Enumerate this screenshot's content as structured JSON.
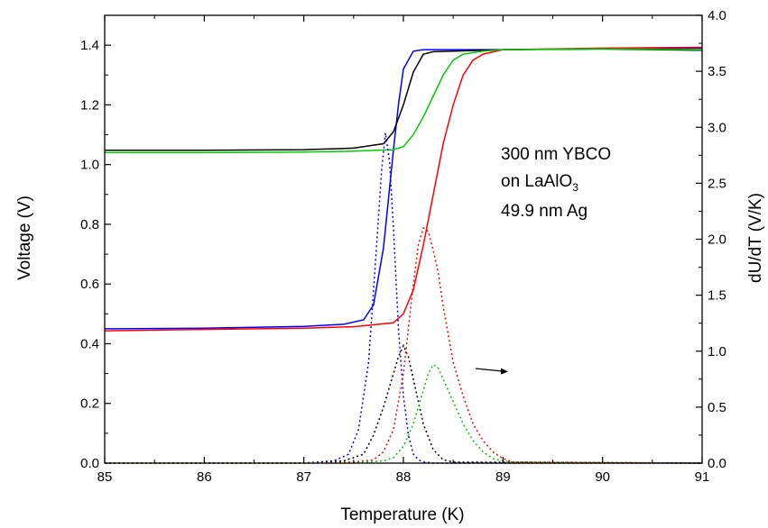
{
  "chart_data": {
    "type": "line",
    "xlabel": "Temperature (K)",
    "ylabel": "Voltage (V)",
    "y2label": "dU/dT (V/K)",
    "xlim": [
      85,
      91
    ],
    "ylim": [
      0,
      1.5
    ],
    "y2lim": [
      0,
      4.0
    ],
    "x_ticks": [
      "85",
      "86",
      "87",
      "88",
      "89",
      "90",
      "91"
    ],
    "y_ticks": [
      "0.0",
      "0.2",
      "0.4",
      "0.6",
      "0.8",
      "1.0",
      "1.2",
      "1.4"
    ],
    "y2_ticks": [
      "0.0",
      "0.5",
      "1.0",
      "1.5",
      "2.0",
      "2.5",
      "3.0",
      "3.5",
      "4.0"
    ],
    "annotation": {
      "line1": "300 nm YBCO",
      "line2_prefix": "on LaAlO",
      "line2_sub": "3",
      "line3": "49.9 nm Ag"
    },
    "colors": {
      "blue": "#0000ff",
      "black": "#000000",
      "red": "#ff0000",
      "green": "#00cc00"
    },
    "series": [
      {
        "color": "blue",
        "axis": "left",
        "style": "solid",
        "x": [
          85,
          86,
          87,
          87.4,
          87.6,
          87.7,
          87.8,
          87.9,
          87.95,
          88.0,
          88.1,
          88.2,
          88.4,
          89,
          90,
          91
        ],
        "y": [
          0.45,
          0.452,
          0.458,
          0.465,
          0.48,
          0.53,
          0.72,
          1.05,
          1.2,
          1.32,
          1.38,
          1.385,
          1.385,
          1.385,
          1.388,
          1.39
        ]
      },
      {
        "color": "black",
        "axis": "left",
        "style": "solid",
        "x": [
          85,
          86,
          87,
          87.5,
          87.8,
          87.9,
          88.0,
          88.1,
          88.2,
          88.3,
          88.5,
          89,
          90,
          91
        ],
        "y": [
          1.048,
          1.048,
          1.05,
          1.055,
          1.07,
          1.11,
          1.2,
          1.31,
          1.37,
          1.378,
          1.38,
          1.385,
          1.387,
          1.383
        ]
      },
      {
        "color": "red",
        "axis": "left",
        "style": "solid",
        "x": [
          85,
          86,
          87,
          87.5,
          87.9,
          88.0,
          88.1,
          88.2,
          88.3,
          88.4,
          88.5,
          88.6,
          88.7,
          88.8,
          89,
          90,
          91
        ],
        "y": [
          0.443,
          0.448,
          0.452,
          0.457,
          0.47,
          0.5,
          0.58,
          0.73,
          0.9,
          1.07,
          1.2,
          1.3,
          1.35,
          1.37,
          1.385,
          1.39,
          1.393
        ]
      },
      {
        "color": "green",
        "axis": "left",
        "style": "solid",
        "x": [
          85,
          86,
          87,
          87.5,
          87.9,
          88.0,
          88.1,
          88.2,
          88.3,
          88.4,
          88.5,
          88.6,
          88.8,
          89,
          90,
          91
        ],
        "y": [
          1.04,
          1.04,
          1.042,
          1.045,
          1.05,
          1.06,
          1.1,
          1.16,
          1.23,
          1.3,
          1.35,
          1.37,
          1.38,
          1.385,
          1.388,
          1.385
        ]
      },
      {
        "color": "blue",
        "axis": "right",
        "style": "dotted",
        "x": [
          85,
          87,
          87.3,
          87.45,
          87.55,
          87.65,
          87.72,
          87.78,
          87.82,
          87.86,
          87.9,
          87.95,
          88.0,
          88.05,
          88.1,
          88.15,
          88.2,
          88.3,
          91
        ],
        "y": [
          0,
          0,
          0.02,
          0.08,
          0.3,
          0.9,
          1.8,
          2.6,
          2.95,
          2.7,
          2.1,
          1.2,
          0.6,
          0.25,
          0.08,
          0.03,
          0.01,
          0,
          0
        ]
      },
      {
        "color": "black",
        "axis": "right",
        "style": "dotted",
        "x": [
          85,
          87,
          87.4,
          87.6,
          87.7,
          87.8,
          87.9,
          87.95,
          88.0,
          88.05,
          88.1,
          88.2,
          88.3,
          88.4,
          88.5,
          91
        ],
        "y": [
          0,
          0,
          0.02,
          0.08,
          0.25,
          0.5,
          0.8,
          0.95,
          1.05,
          0.95,
          0.75,
          0.35,
          0.12,
          0.03,
          0.01,
          0
        ]
      },
      {
        "color": "red",
        "axis": "right",
        "style": "dotted",
        "x": [
          85,
          87,
          87.5,
          87.7,
          87.8,
          87.9,
          88.0,
          88.05,
          88.1,
          88.15,
          88.2,
          88.25,
          88.3,
          88.35,
          88.4,
          88.5,
          88.6,
          88.7,
          88.8,
          88.9,
          89.0,
          89.1,
          91
        ],
        "y": [
          0,
          0,
          0.01,
          0.03,
          0.1,
          0.3,
          0.8,
          1.2,
          1.6,
          1.95,
          2.1,
          2.07,
          1.9,
          1.7,
          1.4,
          0.9,
          0.6,
          0.35,
          0.2,
          0.1,
          0.04,
          0.01,
          0
        ]
      },
      {
        "color": "green",
        "axis": "right",
        "style": "dotted",
        "x": [
          85,
          87.5,
          87.8,
          87.9,
          88.0,
          88.1,
          88.2,
          88.25,
          88.3,
          88.35,
          88.4,
          88.5,
          88.6,
          88.7,
          88.8,
          88.9,
          89.0,
          89.1,
          91
        ],
        "y": [
          0,
          0,
          0.02,
          0.05,
          0.15,
          0.35,
          0.65,
          0.8,
          0.88,
          0.85,
          0.75,
          0.55,
          0.35,
          0.2,
          0.1,
          0.04,
          0.02,
          0.01,
          0
        ]
      }
    ]
  }
}
